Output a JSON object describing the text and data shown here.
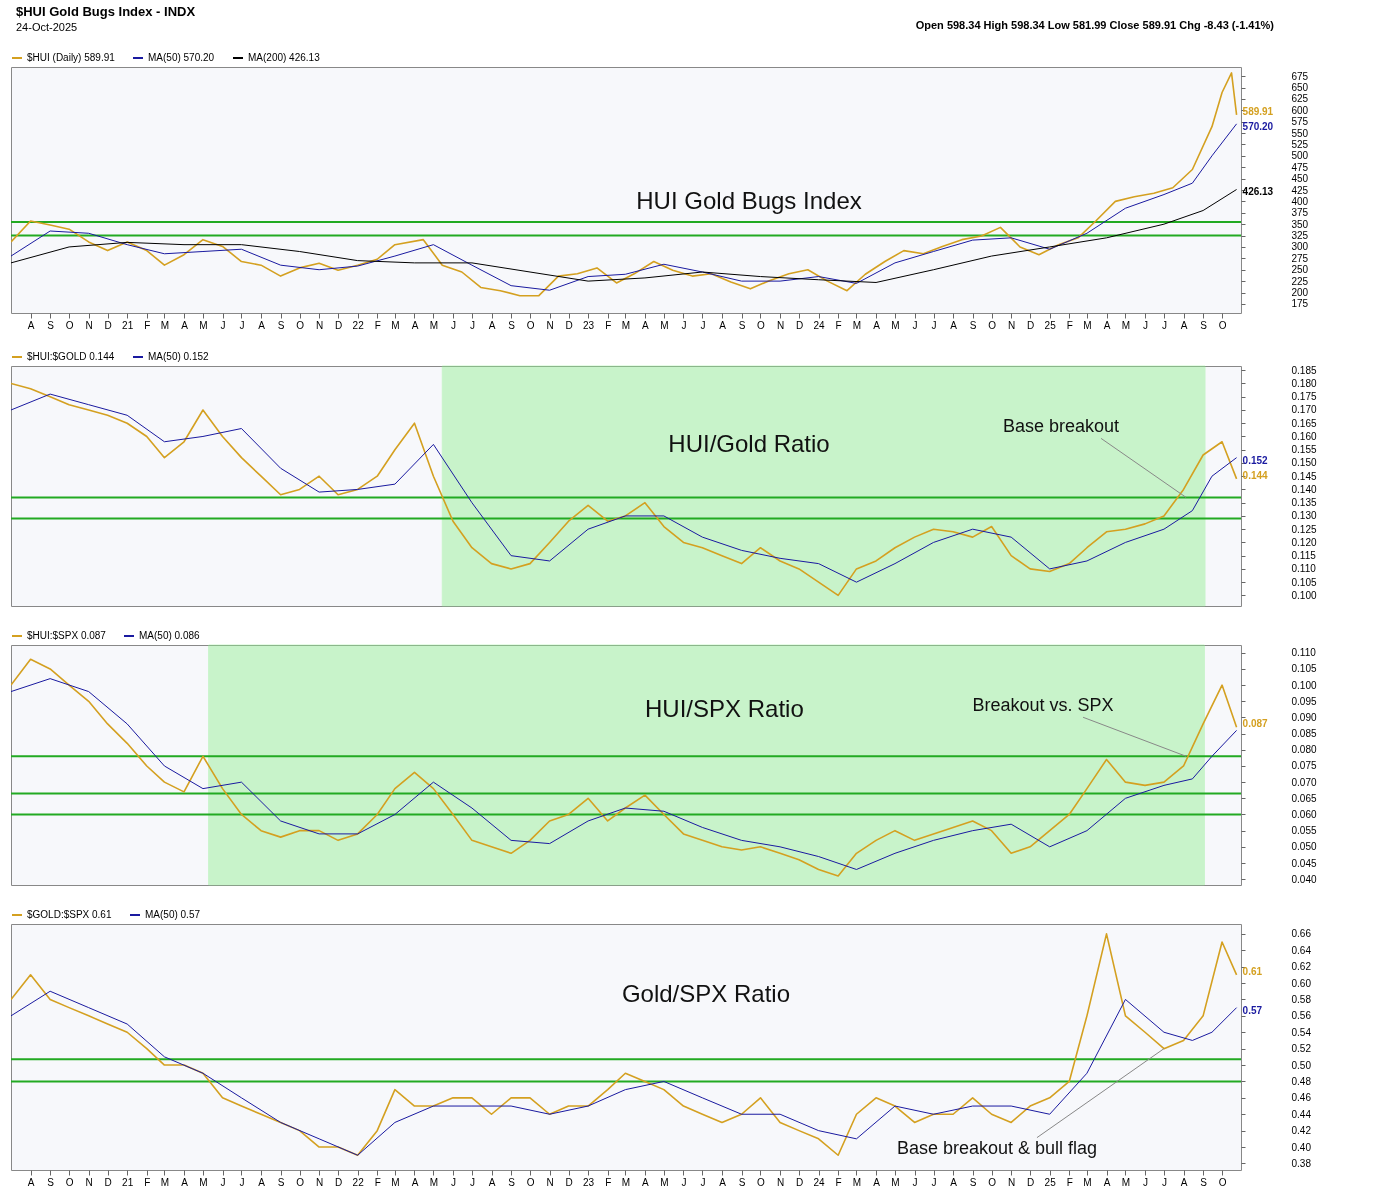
{
  "chart_data": [
    {
      "type": "line",
      "title": "HUI Gold Bugs Index",
      "xlim": [
        "2020-07-01",
        "2025-10-31"
      ],
      "ylim": [
        155,
        695
      ],
      "yticks": [
        175,
        200,
        225,
        250,
        275,
        300,
        325,
        350,
        375,
        400,
        425,
        450,
        475,
        500,
        525,
        550,
        575,
        600,
        625,
        650,
        675
      ],
      "legend": "top left",
      "xticks": [
        {
          "value": "2020-08-01",
          "label": "A"
        },
        {
          "value": "2020-09-01",
          "label": "S"
        },
        {
          "value": "2020-10-01",
          "label": "O"
        },
        {
          "value": "2020-11-01",
          "label": "N"
        },
        {
          "value": "2020-12-01",
          "label": "D"
        },
        {
          "value": "2021-01-01",
          "label": "21"
        },
        {
          "value": "2021-02-01",
          "label": "F"
        },
        {
          "value": "2021-03-01",
          "label": "M"
        },
        {
          "value": "2021-04-01",
          "label": "A"
        },
        {
          "value": "2021-05-01",
          "label": "M"
        },
        {
          "value": "2021-06-01",
          "label": "J"
        },
        {
          "value": "2021-07-01",
          "label": "J"
        },
        {
          "value": "2021-08-01",
          "label": "A"
        },
        {
          "value": "2021-09-01",
          "label": "S"
        },
        {
          "value": "2021-10-01",
          "label": "O"
        },
        {
          "value": "2021-11-01",
          "label": "N"
        },
        {
          "value": "2021-12-01",
          "label": "D"
        },
        {
          "value": "2022-01-01",
          "label": "22"
        },
        {
          "value": "2022-02-01",
          "label": "F"
        },
        {
          "value": "2022-03-01",
          "label": "M"
        },
        {
          "value": "2022-04-01",
          "label": "A"
        },
        {
          "value": "2022-05-01",
          "label": "M"
        },
        {
          "value": "2022-06-01",
          "label": "J"
        },
        {
          "value": "2022-07-01",
          "label": "J"
        },
        {
          "value": "2022-08-01",
          "label": "A"
        },
        {
          "value": "2022-09-01",
          "label": "S"
        },
        {
          "value": "2022-10-01",
          "label": "O"
        },
        {
          "value": "2022-11-01",
          "label": "N"
        },
        {
          "value": "2022-12-01",
          "label": "D"
        },
        {
          "value": "2023-01-01",
          "label": "23"
        },
        {
          "value": "2023-02-01",
          "label": "F"
        },
        {
          "value": "2023-03-01",
          "label": "M"
        },
        {
          "value": "2023-04-01",
          "label": "A"
        },
        {
          "value": "2023-05-01",
          "label": "M"
        },
        {
          "value": "2023-06-01",
          "label": "J"
        },
        {
          "value": "2023-07-01",
          "label": "J"
        },
        {
          "value": "2023-08-01",
          "label": "A"
        },
        {
          "value": "2023-09-01",
          "label": "S"
        },
        {
          "value": "2023-10-01",
          "label": "O"
        },
        {
          "value": "2023-11-01",
          "label": "N"
        },
        {
          "value": "2023-12-01",
          "label": "D"
        },
        {
          "value": "2024-01-01",
          "label": "24"
        },
        {
          "value": "2024-02-01",
          "label": "F"
        },
        {
          "value": "2024-03-01",
          "label": "M"
        },
        {
          "value": "2024-04-01",
          "label": "A"
        },
        {
          "value": "2024-05-01",
          "label": "M"
        },
        {
          "value": "2024-06-01",
          "label": "J"
        },
        {
          "value": "2024-07-01",
          "label": "J"
        },
        {
          "value": "2024-08-01",
          "label": "A"
        },
        {
          "value": "2024-09-01",
          "label": "S"
        },
        {
          "value": "2024-10-01",
          "label": "O"
        },
        {
          "value": "2024-11-01",
          "label": "N"
        },
        {
          "value": "2024-12-01",
          "label": "D"
        },
        {
          "value": "2025-01-01",
          "label": "25"
        },
        {
          "value": "2025-02-01",
          "label": "F"
        },
        {
          "value": "2025-03-01",
          "label": "M"
        },
        {
          "value": "2025-04-01",
          "label": "A"
        },
        {
          "value": "2025-05-01",
          "label": "M"
        },
        {
          "value": "2025-06-01",
          "label": "J"
        },
        {
          "value": "2025-07-01",
          "label": "J"
        },
        {
          "value": "2025-08-01",
          "label": "A"
        },
        {
          "value": "2025-09-01",
          "label": "S"
        },
        {
          "value": "2025-10-01",
          "label": "O"
        }
      ],
      "series": [
        {
          "name": "$HUI (Daily) 589.91",
          "color": "#d4a020",
          "x": [
            "2020-07-01",
            "2020-08-01",
            "2020-09-01",
            "2020-10-01",
            "2020-11-01",
            "2020-12-01",
            "2021-01-01",
            "2021-02-01",
            "2021-03-01",
            "2021-04-01",
            "2021-05-01",
            "2021-06-01",
            "2021-07-01",
            "2021-08-01",
            "2021-09-01",
            "2021-10-01",
            "2021-11-01",
            "2021-12-01",
            "2022-01-01",
            "2022-02-01",
            "2022-03-01",
            "2022-04-15",
            "2022-05-15",
            "2022-06-15",
            "2022-07-15",
            "2022-08-15",
            "2022-09-15",
            "2022-10-15",
            "2022-11-15",
            "2022-12-15",
            "2023-01-15",
            "2023-02-15",
            "2023-03-15",
            "2023-04-15",
            "2023-05-15",
            "2023-06-15",
            "2023-07-15",
            "2023-08-15",
            "2023-09-15",
            "2023-10-15",
            "2023-11-15",
            "2023-12-15",
            "2024-01-15",
            "2024-02-15",
            "2024-03-15",
            "2024-04-15",
            "2024-05-15",
            "2024-06-15",
            "2024-07-15",
            "2024-08-15",
            "2024-09-15",
            "2024-10-15",
            "2024-11-15",
            "2024-12-15",
            "2025-01-15",
            "2025-02-15",
            "2025-03-15",
            "2025-04-15",
            "2025-05-15",
            "2025-06-15",
            "2025-07-15",
            "2025-08-15",
            "2025-09-15",
            "2025-10-01",
            "2025-10-16",
            "2025-10-24"
          ],
          "values": [
            311,
            357,
            348,
            339,
            311,
            292,
            311,
            292,
            260,
            283,
            316,
            301,
            268,
            260,
            236,
            254,
            264,
            249,
            260,
            273,
            305,
            316,
            260,
            245,
            211,
            204,
            193,
            193,
            236,
            241,
            254,
            221,
            241,
            268,
            249,
            236,
            241,
            223,
            208,
            226,
            241,
            250,
            225,
            204,
            240,
            268,
            292,
            285,
            301,
            316,
            324,
            343,
            300,
            283,
            305,
            320,
            357,
            400,
            410,
            418,
            430,
            470,
            564,
            639,
            682,
            589.91
          ]
        },
        {
          "name": "MA(50) 570.20",
          "color": "#1a1aa0",
          "x": [
            "2020-07-01",
            "2020-09-01",
            "2020-11-01",
            "2021-01-01",
            "2021-03-01",
            "2021-05-01",
            "2021-07-01",
            "2021-09-01",
            "2021-11-01",
            "2022-01-01",
            "2022-03-01",
            "2022-05-01",
            "2022-07-01",
            "2022-09-01",
            "2022-11-01",
            "2023-01-01",
            "2023-03-01",
            "2023-05-01",
            "2023-07-01",
            "2023-09-01",
            "2023-11-01",
            "2024-01-01",
            "2024-03-01",
            "2024-05-01",
            "2024-07-01",
            "2024-09-01",
            "2024-11-01",
            "2025-01-01",
            "2025-03-01",
            "2025-05-01",
            "2025-07-01",
            "2025-08-15",
            "2025-09-15",
            "2025-10-24"
          ],
          "values": [
            280,
            335,
            330,
            305,
            285,
            290,
            295,
            260,
            250,
            258,
            280,
            305,
            260,
            215,
            205,
            235,
            240,
            262,
            245,
            225,
            225,
            235,
            220,
            265,
            290,
            315,
            320,
            295,
            330,
            385,
            415,
            440,
            500,
            570.2
          ]
        },
        {
          "name": "MA(200) 426.13",
          "color": "#000000",
          "x": [
            "2020-07-01",
            "2020-10-01",
            "2021-01-01",
            "2021-04-01",
            "2021-07-01",
            "2021-10-01",
            "2022-01-01",
            "2022-04-01",
            "2022-07-01",
            "2022-10-01",
            "2023-01-01",
            "2023-04-01",
            "2023-07-01",
            "2023-10-01",
            "2024-01-01",
            "2024-04-01",
            "2024-07-01",
            "2024-10-01",
            "2025-01-01",
            "2025-04-01",
            "2025-07-01",
            "2025-09-01",
            "2025-10-24"
          ],
          "values": [
            265,
            300,
            310,
            305,
            305,
            290,
            270,
            265,
            265,
            245,
            225,
            232,
            245,
            235,
            228,
            222,
            250,
            280,
            300,
            320,
            350,
            380,
            426.13
          ]
        }
      ],
      "ref_lines": [
        {
          "axis": "y",
          "value": 355,
          "color": "#22aa22"
        },
        {
          "axis": "y",
          "value": 325,
          "color": "#22aa22"
        }
      ],
      "annotations": [
        "$HUI Gold Bugs Index - INDX",
        "24-Oct-2025",
        "Open 598.34 High 598.34 Low 581.99 Close 589.91 Chg -8.43 (-1.41%)",
        {
          "text": "589.91",
          "x": "2025-10-24",
          "y": 589.91
        },
        {
          "text": "570.20",
          "x": "2025-10-24",
          "y": 570.2
        },
        {
          "text": "426.13",
          "x": "2025-10-24",
          "y": 426.13
        }
      ]
    },
    {
      "type": "line",
      "title": "HUI/Gold Ratio",
      "xlim": [
        "2020-07-01",
        "2025-10-31"
      ],
      "ylim": [
        0.096,
        0.1866
      ],
      "tick_labels": "y",
      "legend": "top left",
      "yticks": [
        {
          "value": 0.1,
          "label": "0.100"
        },
        0.105,
        {
          "value": 0.11,
          "label": "0.110"
        },
        0.115,
        {
          "value": 0.12,
          "label": "0.120"
        },
        0.125,
        {
          "value": 0.13,
          "label": "0.130"
        },
        0.135,
        {
          "value": 0.14,
          "label": "0.140"
        },
        0.145,
        {
          "value": 0.15,
          "label": "0.150"
        },
        0.155,
        {
          "value": 0.16,
          "label": "0.160"
        },
        0.165,
        {
          "value": 0.17,
          "label": "0.170"
        },
        0.175,
        {
          "value": 0.18,
          "label": "0.180"
        },
        0.185
      ],
      "series": [
        {
          "name": "$HUI:$GOLD 0.144",
          "color": "#d4a020",
          "x": [
            "2020-07-01",
            "2020-08-01",
            "2020-09-01",
            "2020-10-01",
            "2020-11-01",
            "2020-12-01",
            "2021-01-01",
            "2021-02-01",
            "2021-03-01",
            "2021-04-01",
            "2021-05-01",
            "2021-06-01",
            "2021-07-01",
            "2021-08-01",
            "2021-09-01",
            "2021-10-01",
            "2021-11-01",
            "2021-12-01",
            "2022-01-01",
            "2022-02-01",
            "2022-03-01",
            "2022-04-01",
            "2022-05-01",
            "2022-06-01",
            "2022-07-01",
            "2022-08-01",
            "2022-09-01",
            "2022-10-01",
            "2022-11-01",
            "2022-12-01",
            "2023-01-01",
            "2023-02-01",
            "2023-03-01",
            "2023-04-01",
            "2023-05-01",
            "2023-06-01",
            "2023-07-01",
            "2023-08-01",
            "2023-09-01",
            "2023-10-01",
            "2023-11-01",
            "2023-12-01",
            "2024-01-01",
            "2024-02-01",
            "2024-03-01",
            "2024-04-01",
            "2024-05-01",
            "2024-06-01",
            "2024-07-01",
            "2024-08-01",
            "2024-09-01",
            "2024-10-01",
            "2024-11-01",
            "2024-12-01",
            "2025-01-01",
            "2025-02-01",
            "2025-03-01",
            "2025-04-01",
            "2025-05-01",
            "2025-06-01",
            "2025-07-01",
            "2025-08-01",
            "2025-09-01",
            "2025-10-01",
            "2025-10-24"
          ],
          "values": [
            0.18,
            0.178,
            0.175,
            0.172,
            0.17,
            0.168,
            0.165,
            0.16,
            0.152,
            0.158,
            0.17,
            0.16,
            0.152,
            0.145,
            0.138,
            0.14,
            0.145,
            0.138,
            0.14,
            0.145,
            0.155,
            0.165,
            0.145,
            0.128,
            0.118,
            0.112,
            0.11,
            0.112,
            0.12,
            0.128,
            0.134,
            0.128,
            0.13,
            0.135,
            0.126,
            0.12,
            0.118,
            0.115,
            0.112,
            0.118,
            0.113,
            0.11,
            0.105,
            0.1,
            0.11,
            0.113,
            0.118,
            0.122,
            0.125,
            0.124,
            0.122,
            0.126,
            0.115,
            0.11,
            0.109,
            0.112,
            0.118,
            0.124,
            0.125,
            0.127,
            0.13,
            0.14,
            0.153,
            0.158,
            0.144
          ]
        },
        {
          "name": "MA(50) 0.152",
          "color": "#1a1aa0",
          "x": [
            "2020-07-01",
            "2020-09-01",
            "2020-11-01",
            "2021-01-01",
            "2021-03-01",
            "2021-05-01",
            "2021-07-01",
            "2021-09-01",
            "2021-11-01",
            "2022-01-01",
            "2022-03-01",
            "2022-05-01",
            "2022-07-01",
            "2022-09-01",
            "2022-11-01",
            "2023-01-01",
            "2023-03-01",
            "2023-05-01",
            "2023-07-01",
            "2023-09-01",
            "2023-11-01",
            "2024-01-01",
            "2024-03-01",
            "2024-05-01",
            "2024-07-01",
            "2024-09-01",
            "2024-11-01",
            "2025-01-01",
            "2025-03-01",
            "2025-05-01",
            "2025-07-01",
            "2025-08-15",
            "2025-09-15",
            "2025-10-24"
          ],
          "values": [
            0.17,
            0.176,
            0.172,
            0.168,
            0.158,
            0.16,
            0.163,
            0.148,
            0.139,
            0.14,
            0.142,
            0.157,
            0.135,
            0.115,
            0.113,
            0.125,
            0.13,
            0.13,
            0.122,
            0.117,
            0.114,
            0.112,
            0.105,
            0.112,
            0.12,
            0.125,
            0.122,
            0.11,
            0.113,
            0.12,
            0.125,
            0.132,
            0.145,
            0.152
          ]
        }
      ],
      "ref_lines": [
        {
          "axis": "y",
          "value": 0.137,
          "color": "#22aa22"
        },
        {
          "axis": "y",
          "value": 0.129,
          "color": "#22aa22"
        }
      ],
      "bands": [
        {
          "axis": "x",
          "from": "2022-05-15",
          "to": "2025-09-04",
          "color": "#90ee90"
        }
      ],
      "annotations": [
        {
          "text": "0.144",
          "x": "2025-10-24",
          "y": 0.144
        },
        {
          "text": "0.152",
          "x": "2025-10-24",
          "y": 0.152
        },
        {
          "text": "Base breakout",
          "x": "2025-08-05",
          "y": 0.137
        }
      ]
    },
    {
      "type": "line",
      "title": "HUI/SPX Ratio",
      "xlim": [
        "2020-07-01",
        "2025-10-31"
      ],
      "ylim": [
        0.0382,
        0.1124
      ],
      "tick_labels": "y",
      "legend": "top left",
      "yticks": [
        {
          "value": 0.04,
          "label": "0.040"
        },
        0.045,
        {
          "value": 0.05,
          "label": "0.050"
        },
        0.055,
        {
          "value": 0.06,
          "label": "0.060"
        },
        0.065,
        {
          "value": 0.07,
          "label": "0.070"
        },
        0.075,
        {
          "value": 0.08,
          "label": "0.080"
        },
        0.085,
        {
          "value": 0.09,
          "label": "0.090"
        },
        0.095,
        {
          "value": 0.1,
          "label": "0.100"
        },
        0.105,
        {
          "value": 0.11,
          "label": "0.110"
        }
      ],
      "series": [
        {
          "name": "$HUI:$SPX 0.087",
          "color": "#d4a020",
          "x": [
            "2020-07-01",
            "2020-08-01",
            "2020-09-01",
            "2020-10-01",
            "2020-11-01",
            "2020-12-01",
            "2021-01-01",
            "2021-02-01",
            "2021-03-01",
            "2021-04-01",
            "2021-05-01",
            "2021-06-01",
            "2021-07-01",
            "2021-08-01",
            "2021-09-01",
            "2021-10-01",
            "2021-11-01",
            "2021-12-01",
            "2022-01-01",
            "2022-02-01",
            "2022-03-01",
            "2022-04-01",
            "2022-05-01",
            "2022-06-01",
            "2022-07-01",
            "2022-08-01",
            "2022-09-01",
            "2022-10-01",
            "2022-11-01",
            "2022-12-01",
            "2023-01-01",
            "2023-02-01",
            "2023-03-01",
            "2023-04-01",
            "2023-05-01",
            "2023-06-01",
            "2023-07-01",
            "2023-08-01",
            "2023-09-01",
            "2023-10-01",
            "2023-11-01",
            "2023-12-01",
            "2024-01-01",
            "2024-02-01",
            "2024-03-01",
            "2024-04-01",
            "2024-05-01",
            "2024-06-01",
            "2024-07-01",
            "2024-08-01",
            "2024-09-01",
            "2024-10-01",
            "2024-11-01",
            "2024-12-01",
            "2025-01-01",
            "2025-02-01",
            "2025-03-01",
            "2025-04-01",
            "2025-05-01",
            "2025-06-01",
            "2025-07-01",
            "2025-08-01",
            "2025-09-01",
            "2025-10-01",
            "2025-10-24"
          ],
          "values": [
            0.1,
            0.108,
            0.105,
            0.1,
            0.095,
            0.088,
            0.082,
            0.075,
            0.07,
            0.067,
            0.078,
            0.068,
            0.06,
            0.055,
            0.053,
            0.055,
            0.055,
            0.052,
            0.054,
            0.06,
            0.068,
            0.073,
            0.068,
            0.06,
            0.052,
            0.05,
            0.048,
            0.052,
            0.058,
            0.06,
            0.065,
            0.058,
            0.062,
            0.066,
            0.06,
            0.054,
            0.052,
            0.05,
            0.049,
            0.05,
            0.048,
            0.046,
            0.043,
            0.041,
            0.048,
            0.052,
            0.055,
            0.052,
            0.054,
            0.056,
            0.058,
            0.055,
            0.048,
            0.05,
            0.055,
            0.06,
            0.068,
            0.077,
            0.07,
            0.069,
            0.07,
            0.075,
            0.088,
            0.1,
            0.087
          ]
        },
        {
          "name": "MA(50) 0.086",
          "color": "#1a1aa0",
          "x": [
            "2020-07-01",
            "2020-09-01",
            "2020-11-01",
            "2021-01-01",
            "2021-03-01",
            "2021-05-01",
            "2021-07-01",
            "2021-09-01",
            "2021-11-01",
            "2022-01-01",
            "2022-03-01",
            "2022-05-01",
            "2022-07-01",
            "2022-09-01",
            "2022-11-01",
            "2023-01-01",
            "2023-03-01",
            "2023-05-01",
            "2023-07-01",
            "2023-09-01",
            "2023-11-01",
            "2024-01-01",
            "2024-03-01",
            "2024-05-01",
            "2024-07-01",
            "2024-09-01",
            "2024-11-01",
            "2025-01-01",
            "2025-03-01",
            "2025-05-01",
            "2025-07-01",
            "2025-08-15",
            "2025-09-15",
            "2025-10-24"
          ],
          "values": [
            0.098,
            0.102,
            0.098,
            0.088,
            0.075,
            0.068,
            0.07,
            0.058,
            0.054,
            0.054,
            0.06,
            0.07,
            0.062,
            0.052,
            0.051,
            0.058,
            0.062,
            0.061,
            0.056,
            0.052,
            0.05,
            0.047,
            0.043,
            0.048,
            0.052,
            0.055,
            0.057,
            0.05,
            0.055,
            0.065,
            0.069,
            0.071,
            0.078,
            0.086
          ]
        }
      ],
      "ref_lines": [
        {
          "axis": "y",
          "value": 0.078,
          "color": "#22aa22"
        },
        {
          "axis": "y",
          "value": 0.0665,
          "color": "#22aa22"
        },
        {
          "axis": "y",
          "value": 0.06,
          "color": "#22aa22"
        }
      ],
      "bands": [
        {
          "axis": "x",
          "from": "2021-05-10",
          "to": "2025-09-03",
          "color": "#90ee90"
        }
      ],
      "annotations": [
        {
          "text": "0.087",
          "x": "2025-10-24",
          "y": 0.087
        },
        {
          "text": "Breakout vs. SPX",
          "x": "2025-08-05",
          "y": 0.078
        }
      ]
    },
    {
      "type": "line",
      "title": "Gold/SPX Ratio",
      "xlim": [
        "2020-07-01",
        "2025-10-31"
      ],
      "ylim": [
        0.372,
        0.672
      ],
      "legend": "top left",
      "yticks": [
        0.38,
        {
          "value": 0.4,
          "label": "0.40"
        },
        0.42,
        0.44,
        0.46,
        0.48,
        {
          "value": 0.5,
          "label": "0.50"
        },
        0.52,
        0.54,
        0.56,
        0.58,
        {
          "value": 0.6,
          "label": "0.60"
        },
        0.62,
        0.64,
        0.66
      ],
      "xticks": [
        {
          "value": "2020-08-01",
          "label": "A"
        },
        {
          "value": "2020-09-01",
          "label": "S"
        },
        {
          "value": "2020-10-01",
          "label": "O"
        },
        {
          "value": "2020-11-01",
          "label": "N"
        },
        {
          "value": "2020-12-01",
          "label": "D"
        },
        {
          "value": "2021-01-01",
          "label": "21"
        },
        {
          "value": "2021-02-01",
          "label": "F"
        },
        {
          "value": "2021-03-01",
          "label": "M"
        },
        {
          "value": "2021-04-01",
          "label": "A"
        },
        {
          "value": "2021-05-01",
          "label": "M"
        },
        {
          "value": "2021-06-01",
          "label": "J"
        },
        {
          "value": "2021-07-01",
          "label": "J"
        },
        {
          "value": "2021-08-01",
          "label": "A"
        },
        {
          "value": "2021-09-01",
          "label": "S"
        },
        {
          "value": "2021-10-01",
          "label": "O"
        },
        {
          "value": "2021-11-01",
          "label": "N"
        },
        {
          "value": "2021-12-01",
          "label": "D"
        },
        {
          "value": "2022-01-01",
          "label": "22"
        },
        {
          "value": "2022-02-01",
          "label": "F"
        },
        {
          "value": "2022-03-01",
          "label": "M"
        },
        {
          "value": "2022-04-01",
          "label": "A"
        },
        {
          "value": "2022-05-01",
          "label": "M"
        },
        {
          "value": "2022-06-01",
          "label": "J"
        },
        {
          "value": "2022-07-01",
          "label": "J"
        },
        {
          "value": "2022-08-01",
          "label": "A"
        },
        {
          "value": "2022-09-01",
          "label": "S"
        },
        {
          "value": "2022-10-01",
          "label": "O"
        },
        {
          "value": "2022-11-01",
          "label": "N"
        },
        {
          "value": "2022-12-01",
          "label": "D"
        },
        {
          "value": "2023-01-01",
          "label": "23"
        },
        {
          "value": "2023-02-01",
          "label": "F"
        },
        {
          "value": "2023-03-01",
          "label": "M"
        },
        {
          "value": "2023-04-01",
          "label": "A"
        },
        {
          "value": "2023-05-01",
          "label": "M"
        },
        {
          "value": "2023-06-01",
          "label": "J"
        },
        {
          "value": "2023-07-01",
          "label": "J"
        },
        {
          "value": "2023-08-01",
          "label": "A"
        },
        {
          "value": "2023-09-01",
          "label": "S"
        },
        {
          "value": "2023-10-01",
          "label": "O"
        },
        {
          "value": "2023-11-01",
          "label": "N"
        },
        {
          "value": "2023-12-01",
          "label": "D"
        },
        {
          "value": "2024-01-01",
          "label": "24"
        },
        {
          "value": "2024-02-01",
          "label": "F"
        },
        {
          "value": "2024-03-01",
          "label": "M"
        },
        {
          "value": "2024-04-01",
          "label": "A"
        },
        {
          "value": "2024-05-01",
          "label": "M"
        },
        {
          "value": "2024-06-01",
          "label": "J"
        },
        {
          "value": "2024-07-01",
          "label": "J"
        },
        {
          "value": "2024-08-01",
          "label": "A"
        },
        {
          "value": "2024-09-01",
          "label": "S"
        },
        {
          "value": "2024-10-01",
          "label": "O"
        },
        {
          "value": "2024-11-01",
          "label": "N"
        },
        {
          "value": "2024-12-01",
          "label": "D"
        },
        {
          "value": "2025-01-01",
          "label": "25"
        },
        {
          "value": "2025-02-01",
          "label": "F"
        },
        {
          "value": "2025-03-01",
          "label": "M"
        },
        {
          "value": "2025-04-01",
          "label": "A"
        },
        {
          "value": "2025-05-01",
          "label": "M"
        },
        {
          "value": "2025-06-01",
          "label": "J"
        },
        {
          "value": "2025-07-01",
          "label": "J"
        },
        {
          "value": "2025-08-01",
          "label": "A"
        },
        {
          "value": "2025-09-01",
          "label": "S"
        },
        {
          "value": "2025-10-01",
          "label": "O"
        }
      ],
      "series": [
        {
          "name": "$GOLD:$SPX 0.61",
          "color": "#d4a020",
          "x": [
            "2020-07-01",
            "2020-08-01",
            "2020-09-01",
            "2020-10-01",
            "2020-11-01",
            "2020-12-01",
            "2021-01-01",
            "2021-02-01",
            "2021-03-01",
            "2021-04-01",
            "2021-05-01",
            "2021-06-01",
            "2021-07-01",
            "2021-08-01",
            "2021-09-01",
            "2021-10-01",
            "2021-11-01",
            "2021-12-01",
            "2022-01-01",
            "2022-02-01",
            "2022-03-01",
            "2022-04-01",
            "2022-05-01",
            "2022-06-01",
            "2022-07-01",
            "2022-08-01",
            "2022-09-01",
            "2022-10-01",
            "2022-11-01",
            "2022-12-01",
            "2023-01-01",
            "2023-02-01",
            "2023-03-01",
            "2023-04-01",
            "2023-05-01",
            "2023-06-01",
            "2023-07-01",
            "2023-08-01",
            "2023-09-01",
            "2023-10-01",
            "2023-11-01",
            "2023-12-01",
            "2024-01-01",
            "2024-02-01",
            "2024-03-01",
            "2024-04-01",
            "2024-05-01",
            "2024-06-01",
            "2024-07-01",
            "2024-08-01",
            "2024-09-01",
            "2024-10-01",
            "2024-11-01",
            "2024-12-01",
            "2025-01-01",
            "2025-02-01",
            "2025-03-01",
            "2025-04-01",
            "2025-05-01",
            "2025-06-01",
            "2025-07-01",
            "2025-08-01",
            "2025-09-01",
            "2025-10-01",
            "2025-10-24"
          ],
          "values": [
            0.58,
            0.61,
            0.58,
            0.57,
            0.56,
            0.55,
            0.54,
            0.52,
            0.5,
            0.5,
            0.49,
            0.46,
            0.45,
            0.44,
            0.43,
            0.42,
            0.4,
            0.4,
            0.39,
            0.42,
            0.47,
            0.45,
            0.45,
            0.46,
            0.46,
            0.44,
            0.46,
            0.46,
            0.44,
            0.45,
            0.45,
            0.47,
            0.49,
            0.48,
            0.47,
            0.45,
            0.44,
            0.43,
            0.44,
            0.46,
            0.43,
            0.42,
            0.41,
            0.39,
            0.44,
            0.46,
            0.45,
            0.43,
            0.44,
            0.44,
            0.46,
            0.44,
            0.43,
            0.45,
            0.46,
            0.48,
            0.56,
            0.66,
            0.56,
            0.54,
            0.52,
            0.53,
            0.56,
            0.65,
            0.61
          ]
        },
        {
          "name": "MA(50) 0.57",
          "color": "#1a1aa0",
          "x": [
            "2020-07-01",
            "2020-09-01",
            "2020-11-01",
            "2021-01-01",
            "2021-03-01",
            "2021-05-01",
            "2021-07-01",
            "2021-09-01",
            "2021-11-01",
            "2022-01-01",
            "2022-03-01",
            "2022-05-01",
            "2022-07-01",
            "2022-09-01",
            "2022-11-01",
            "2023-01-01",
            "2023-03-01",
            "2023-05-01",
            "2023-07-01",
            "2023-09-01",
            "2023-11-01",
            "2024-01-01",
            "2024-03-01",
            "2024-05-01",
            "2024-07-01",
            "2024-09-01",
            "2024-11-01",
            "2025-01-01",
            "2025-03-01",
            "2025-05-01",
            "2025-07-01",
            "2025-08-15",
            "2025-09-15",
            "2025-10-24"
          ],
          "values": [
            0.56,
            0.59,
            0.57,
            0.55,
            0.51,
            0.49,
            0.46,
            0.43,
            0.41,
            0.39,
            0.43,
            0.45,
            0.45,
            0.45,
            0.44,
            0.45,
            0.47,
            0.48,
            0.46,
            0.44,
            0.44,
            0.42,
            0.41,
            0.45,
            0.44,
            0.45,
            0.45,
            0.44,
            0.49,
            0.58,
            0.54,
            0.53,
            0.54,
            0.57
          ]
        }
      ],
      "ref_lines": [
        {
          "axis": "y",
          "value": 0.507,
          "color": "#22aa22"
        },
        {
          "axis": "y",
          "value": 0.48,
          "color": "#22aa22"
        }
      ],
      "annotations": [
        {
          "text": "0.61",
          "x": "2025-10-24",
          "y": 0.61
        },
        {
          "text": "0.57",
          "x": "2025-10-24",
          "y": 0.57
        },
        {
          "text": "Base breakout & bull flag",
          "x": "2025-07-01",
          "y": 0.52
        }
      ]
    }
  ]
}
